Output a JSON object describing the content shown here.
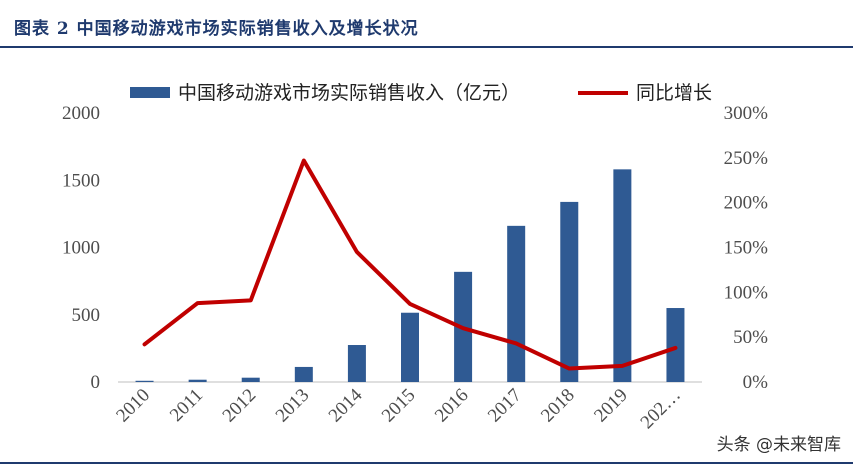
{
  "figure_title": "图表 2 中国移动游戏市场实际销售收入及增长状况",
  "watermark": "头条 @未来智库",
  "colors": {
    "bar": "#2f5a93",
    "line": "#c00000",
    "rule": "#1f3a6e"
  },
  "chart_data": {
    "type": "bar+line",
    "categories": [
      "2010",
      "2011",
      "2012",
      "2013",
      "2014",
      "2015",
      "2016",
      "2017",
      "2018",
      "2019",
      "202…"
    ],
    "series": [
      {
        "name": "中国移动游戏市场实际销售收入（亿元）",
        "type": "bar",
        "axis": "left",
        "values": [
          9,
          17,
          32,
          112,
          275,
          515,
          819,
          1161,
          1339,
          1581,
          550
        ]
      },
      {
        "name": "同比增长",
        "type": "line",
        "axis": "right",
        "values": [
          42,
          88,
          91,
          247,
          145,
          87,
          60,
          43,
          15,
          18,
          38
        ]
      }
    ],
    "y_left": {
      "min": 0,
      "max": 2000,
      "ticks": [
        "0",
        "500",
        "1000",
        "1500",
        "2000"
      ]
    },
    "y_right": {
      "min": 0,
      "max": 300,
      "ticks": [
        "0%",
        "50%",
        "100%",
        "150%",
        "200%",
        "250%",
        "300%"
      ]
    },
    "grid": false,
    "legend_position": "top"
  }
}
